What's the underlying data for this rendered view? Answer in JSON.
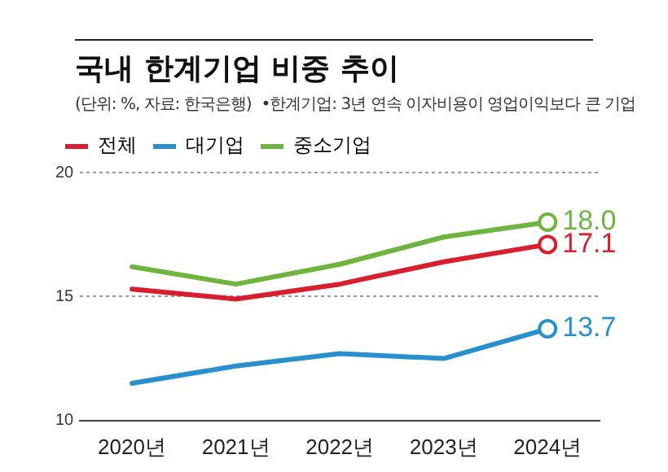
{
  "chart_data": {
    "type": "line",
    "title": "국내 한계기업 비중 추이",
    "subtitle": "(단위: %, 자료: 한국은행)",
    "annotations": [
      "•한계기업: 3년 연속 이자비용이 영업이익보다 큰 기업"
    ],
    "categories": [
      "2020년",
      "2021년",
      "2022년",
      "2023년",
      "2024년"
    ],
    "series": [
      {
        "name": "전체",
        "color": "#d7202f",
        "values": [
          15.3,
          14.9,
          15.5,
          16.4,
          17.1
        ],
        "value_labels": [
          null,
          null,
          null,
          null,
          "17.1"
        ]
      },
      {
        "name": "대기업",
        "color": "#2a8fcd",
        "values": [
          11.5,
          12.2,
          12.7,
          12.5,
          13.7
        ],
        "value_labels": [
          null,
          null,
          null,
          null,
          "13.7"
        ]
      },
      {
        "name": "중소기업",
        "color": "#6fb43f",
        "values": [
          16.2,
          15.5,
          16.3,
          17.4,
          18.0
        ],
        "value_labels": [
          null,
          null,
          null,
          null,
          "18.0"
        ]
      }
    ],
    "ylim": [
      10,
      20
    ],
    "yticks": [
      10,
      15,
      20
    ],
    "grid": "y",
    "legend": "top left",
    "marker": "none",
    "line_style": "solid"
  }
}
